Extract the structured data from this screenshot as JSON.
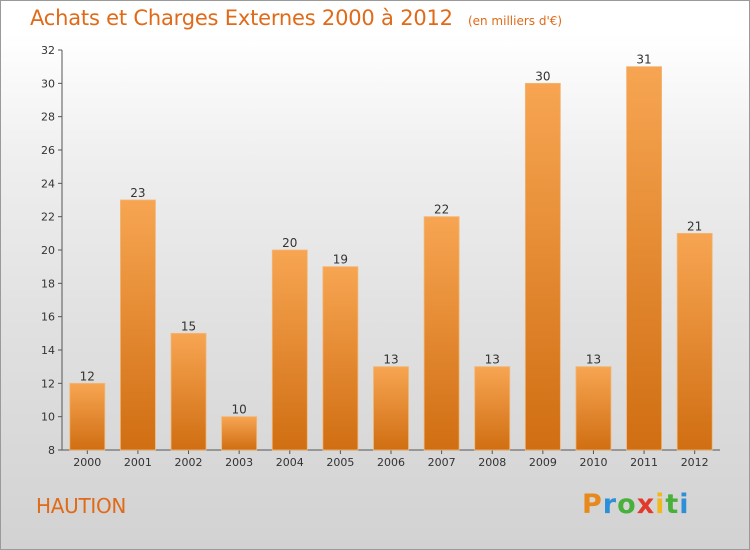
{
  "chart_data": {
    "type": "bar",
    "title": "Achats et Charges Externes 2000 à 2012",
    "subtitle": "(en milliers d'€)",
    "categories": [
      "2000",
      "2001",
      "2002",
      "2003",
      "2004",
      "2005",
      "2006",
      "2007",
      "2008",
      "2009",
      "2010",
      "2011",
      "2012"
    ],
    "values": [
      12,
      23,
      15,
      10,
      20,
      19,
      13,
      22,
      13,
      30,
      13,
      31,
      21
    ],
    "ylim": [
      8,
      32
    ],
    "yticks": [
      8,
      10,
      12,
      14,
      16,
      18,
      20,
      22,
      24,
      26,
      28,
      30,
      32
    ],
    "grid": false,
    "data_labels": true,
    "bar_color_top": "#f7a552",
    "bar_color_bottom": "#d06e12",
    "accent_color": "#e06a18"
  },
  "commune": "HAUTION",
  "logo": {
    "letters": [
      "P",
      "r",
      "o",
      "x",
      "i",
      "t",
      "i"
    ],
    "colors": [
      "#e8891c",
      "#2d8fd8",
      "#4ab03c",
      "#e23a2a",
      "#f0b81c",
      "#4ab03c",
      "#2d8fd8"
    ]
  }
}
